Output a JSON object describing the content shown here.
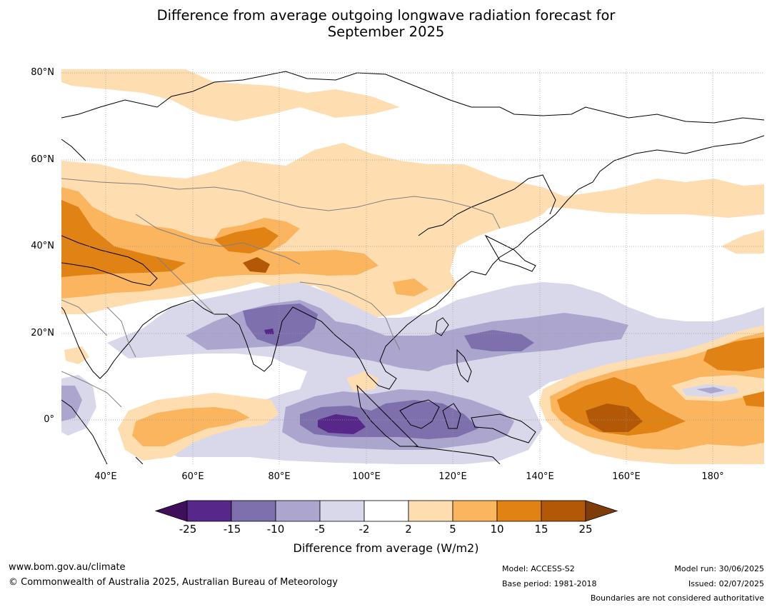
{
  "title_line1": "Difference from average outgoing longwave radiation forecast for",
  "title_line2": "September 2025",
  "lat_labels": [
    "80°N",
    "60°N",
    "40°N",
    "20°N",
    "0°"
  ],
  "lon_labels": [
    "40°E",
    "60°E",
    "80°E",
    "100°E",
    "120°E",
    "140°E",
    "160°E",
    "180°"
  ],
  "colorbar": {
    "ticks": [
      "-25",
      "-15",
      "-10",
      "-5",
      "-2",
      "2",
      "5",
      "10",
      "15",
      "25"
    ],
    "colors": [
      "#3f0f5c",
      "#57278a",
      "#7e70ad",
      "#aca6cf",
      "#d8d8ea",
      "#ffffff",
      "#fedeb0",
      "#fbb55f",
      "#e08214",
      "#b35806",
      "#7f3b08"
    ],
    "label": "Difference from average (W/m2)"
  },
  "footer": {
    "website": "www.bom.gov.au/climate",
    "copyright": "© Commonwealth of Australia 2025, Australian Bureau of Meteorology",
    "model": "Model: ACCESS-S2",
    "base_period": "Base period: 1981-2018",
    "model_run": "Model run: 30/06/2025",
    "issued": "Issued: 02/07/2025",
    "disclaimer": "Boundaries are not considered authoritative"
  }
}
